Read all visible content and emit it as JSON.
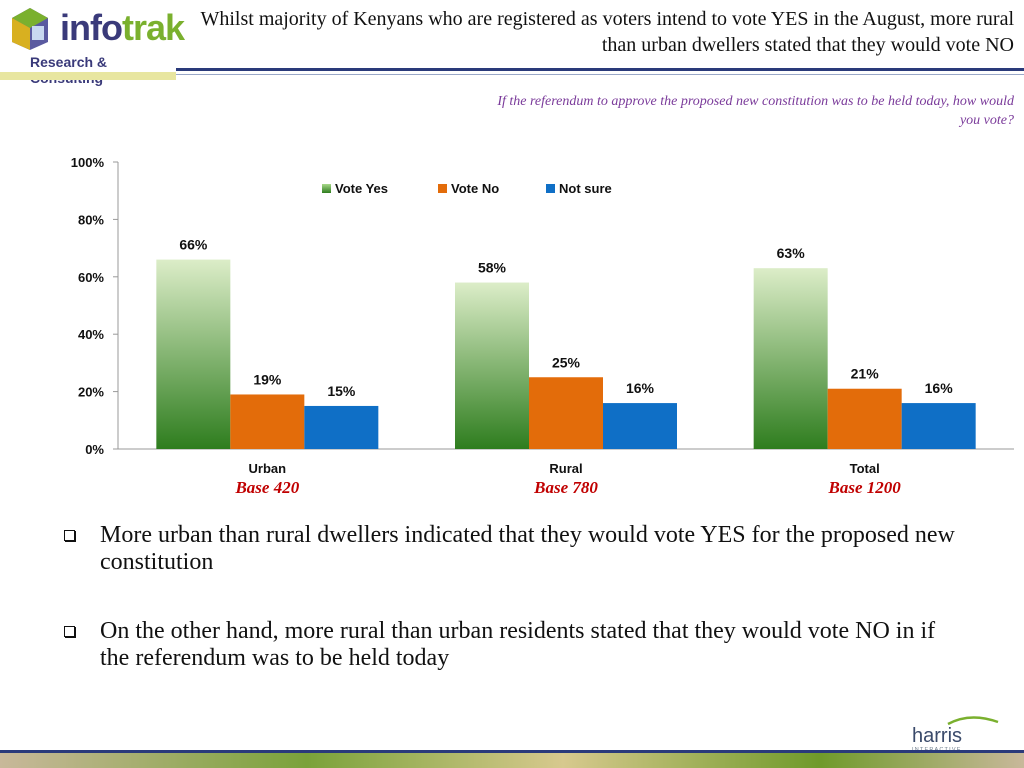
{
  "header": {
    "title": "Whilst majority of Kenyans who are registered as voters intend to vote YES in the August, more rural than urban dwellers stated that they would vote NO",
    "question": "If the referendum to approve the proposed new constitution was to be held today, how would you vote?"
  },
  "logo": {
    "word_main": "info",
    "word_accent": "trak",
    "tagline": "Research & Consulting",
    "brand_color": "#3a3a7a",
    "accent_color": "#7ab02e"
  },
  "chart_data": {
    "type": "bar",
    "categories": [
      "Urban",
      "Rural",
      "Total"
    ],
    "bases": [
      "Base 420",
      "Base 780",
      "Base 1200"
    ],
    "series": [
      {
        "name": "Vote Yes",
        "values": [
          66,
          58,
          63
        ],
        "labels": [
          "66%",
          "58%",
          "63%"
        ],
        "color": "#2e7d1e"
      },
      {
        "name": "Vote No",
        "values": [
          19,
          25,
          21
        ],
        "labels": [
          "19%",
          "25%",
          "21%"
        ],
        "color": "#e36c0a"
      },
      {
        "name": "Not sure",
        "values": [
          15,
          16,
          16
        ],
        "labels": [
          "15%",
          "16%",
          "16%"
        ],
        "color": "#0f6fc6"
      }
    ],
    "yticks": [
      "0%",
      "20%",
      "40%",
      "60%",
      "80%",
      "100%"
    ],
    "ylim": [
      0,
      100
    ],
    "grid": false,
    "legend": "top-center"
  },
  "bullets": [
    "More urban than rural dwellers indicated that they would vote YES for the proposed new constitution",
    "On the other hand, more rural than urban residents stated that they would vote NO in if the referendum was to be held today"
  ],
  "footer": {
    "logo_text": "harris",
    "logo_subtext": "INTERACTIVE"
  }
}
